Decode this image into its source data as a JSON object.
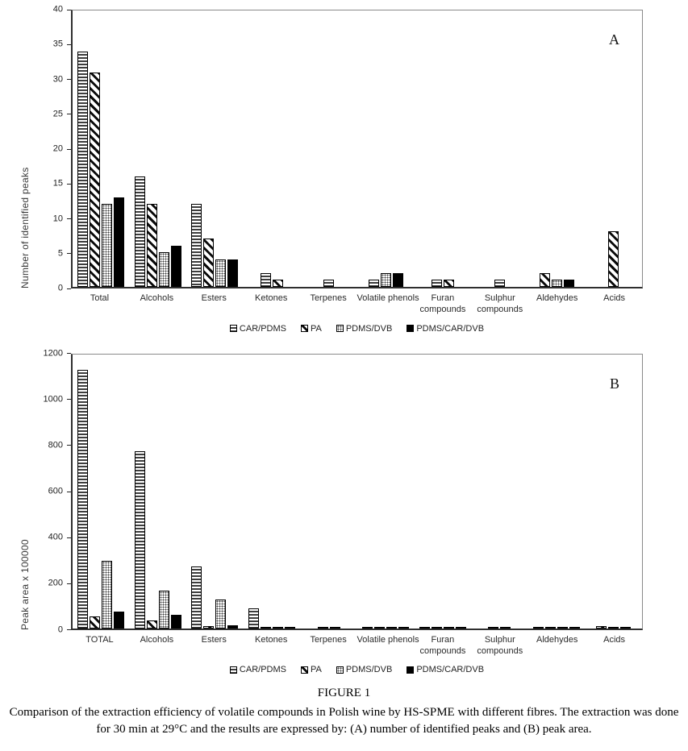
{
  "caption": {
    "title": "FIGURE 1",
    "text": "Comparison of the extraction efficiency of volatile compounds in Polish wine by HS-SPME with different fibres. The extraction was done for 30 min at 29°C and the results are expressed by: (A) number of identified peaks and (B) peak area."
  },
  "colors": {
    "ink": "#000000",
    "axis": "#2f2f2f",
    "frame": "#8a8a8a",
    "background": "#ffffff"
  },
  "chart_data": [
    {
      "type": "bar",
      "corner_label": "A",
      "title": "",
      "xlabel": "",
      "ylabel": "Number of identified peaks",
      "ylim": [
        0,
        40
      ],
      "ytick_step": 5,
      "grid": false,
      "legend_position": "bottom",
      "categories": [
        "Total",
        "Alcohols",
        "Esters",
        "Ketones",
        "Terpenes",
        "Volatile phenols",
        "Furan\ncompounds",
        "Sulphur\ncompounds",
        "Aldehydes",
        "Acids"
      ],
      "series": [
        {
          "name": "CAR/PDMS",
          "pattern": "hlines",
          "values": [
            34,
            16,
            12,
            2,
            1,
            1,
            1,
            1,
            0,
            0
          ]
        },
        {
          "name": "PA",
          "pattern": "diag",
          "values": [
            31,
            12,
            7,
            1,
            0,
            0,
            1,
            0,
            2,
            8
          ]
        },
        {
          "name": "PDMS/DVB",
          "pattern": "dots",
          "values": [
            12,
            5,
            4,
            0,
            0,
            2,
            0,
            0,
            1,
            0
          ]
        },
        {
          "name": "PDMS/CAR/DVB",
          "pattern": "solid",
          "values": [
            13,
            6,
            4,
            0,
            0,
            2,
            0,
            0,
            1,
            0
          ]
        }
      ]
    },
    {
      "type": "bar",
      "corner_label": "B",
      "title": "",
      "xlabel": "",
      "ylabel": "Peak area  x 100000",
      "ylim": [
        0,
        1200
      ],
      "ytick_step": 200,
      "grid": false,
      "legend_position": "bottom",
      "categories": [
        "TOTAL",
        "Alcohols",
        "Esters",
        "Ketones",
        "Terpenes",
        "Volatile phenols",
        "Furan\ncompounds",
        "Sulphur\ncompounds",
        "Aldehydes",
        "Acids"
      ],
      "series": [
        {
          "name": "CAR/PDMS",
          "pattern": "hlines",
          "values": [
            1130,
            775,
            270,
            88,
            4,
            5,
            5,
            4,
            4,
            0
          ]
        },
        {
          "name": "PA",
          "pattern": "diag",
          "values": [
            50,
            35,
            8,
            3,
            0,
            3,
            3,
            0,
            3,
            10
          ]
        },
        {
          "name": "PDMS/DVB",
          "pattern": "dots",
          "values": [
            295,
            165,
            125,
            4,
            2,
            4,
            3,
            2,
            3,
            2
          ]
        },
        {
          "name": "PDMS/CAR/DVB",
          "pattern": "solid",
          "values": [
            72,
            60,
            12,
            3,
            0,
            3,
            2,
            0,
            3,
            2
          ]
        }
      ]
    }
  ]
}
